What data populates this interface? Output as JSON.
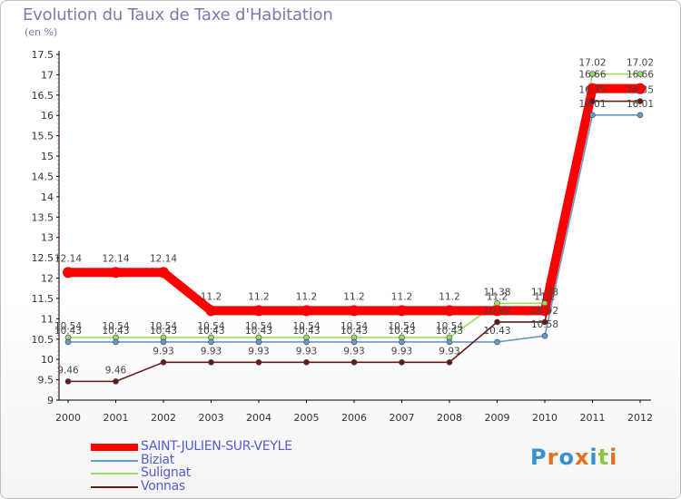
{
  "title": "Evolution du Taux de Taxe d'Habitation",
  "subtitle": "(en %)",
  "logo_text": "Proxiti",
  "chart_data": {
    "type": "line",
    "title": "Evolution du Taux de Taxe d'Habitation",
    "ylabel": "(en %)",
    "xlabel": "",
    "x": [
      "2000",
      "2001",
      "2002",
      "2003",
      "2004",
      "2005",
      "2006",
      "2007",
      "2008",
      "2009",
      "2010",
      "2011",
      "2012"
    ],
    "ylim": [
      9,
      17.5
    ],
    "yticks": [
      "9",
      "9.5",
      "10",
      "10.5",
      "11",
      "11.5",
      "12",
      "12.5",
      "13",
      "13.5",
      "14",
      "14.5",
      "15",
      "15.5",
      "16",
      "16.5",
      "17",
      "17.5"
    ],
    "grid": false,
    "legend_position": "bottom-left",
    "series": [
      {
        "name": "SAINT-JULIEN-SUR-VEYLE",
        "color": "#ff0000",
        "values": [
          12.14,
          12.14,
          12.14,
          11.2,
          11.2,
          11.2,
          11.2,
          11.2,
          11.2,
          11.2,
          11.2,
          16.66,
          16.66
        ],
        "labels": [
          "12.14",
          "12.14",
          "12.14",
          "11.2",
          "11.2",
          "11.2",
          "11.2",
          "11.2",
          "11.2",
          "11.2",
          "11.2",
          "16.66",
          "16.66"
        ]
      },
      {
        "name": "Biziat",
        "color": "#6699cc",
        "values": [
          10.43,
          10.43,
          10.43,
          10.43,
          10.43,
          10.43,
          10.43,
          10.43,
          10.43,
          10.43,
          10.58,
          16.01,
          16.01
        ],
        "labels": [
          "10.43",
          "10.43",
          "10.43",
          "10.43",
          "10.43",
          "10.43",
          "10.43",
          "10.43",
          "10.43",
          "10.43",
          "10.58",
          "16.01",
          "16.01"
        ]
      },
      {
        "name": "Sulignat",
        "color": "#99dd66",
        "values": [
          10.54,
          10.54,
          10.54,
          10.54,
          10.54,
          10.54,
          10.54,
          10.54,
          10.54,
          11.38,
          11.38,
          17.02,
          17.02
        ],
        "labels": [
          "10.54",
          "10.54",
          "10.54",
          "10.54",
          "10.54",
          "10.54",
          "10.54",
          "10.54",
          "10.54",
          "11.38",
          "11.38",
          "17.02",
          "17.02"
        ]
      },
      {
        "name": "Vonnas",
        "color": "#661a1a",
        "values": [
          9.46,
          9.46,
          9.93,
          9.93,
          9.93,
          9.93,
          9.93,
          9.93,
          9.93,
          10.92,
          10.92,
          16.35,
          16.35
        ],
        "labels": [
          "9.46",
          "9.46",
          "9.93",
          "9.93",
          "9.93",
          "9.93",
          "9.93",
          "9.93",
          "9.93",
          "10.92",
          "10.92",
          "16.35",
          "16.35"
        ]
      }
    ]
  }
}
